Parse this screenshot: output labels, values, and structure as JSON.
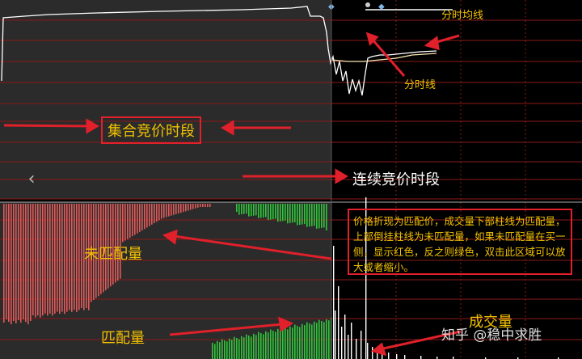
{
  "labels": {
    "call_auction": "集合竞价时段",
    "continuous_auction": "连续竞价时段",
    "unmatched_volume": "未匹配量",
    "matched_volume": "匹配量",
    "trade_volume": "成交量",
    "avg_price_line": "分时均线",
    "price_line": "分时线"
  },
  "note": "价格折现为匹配价，成交量下部柱线为匹配量，上部倒挂柱线为未匹配量，如果未匹配量在买一侧，显示红色，反之则绿色，双击此区域可以放大或者缩小。",
  "watermark": "知乎 @稳中求胜",
  "icons": {
    "back": "chevron-left-icon"
  },
  "colors": {
    "background": "#000000",
    "grid": "#8b1a1a",
    "red_bars": "#e05a5a",
    "green_bars": "#2fc63a",
    "annotation": "#e0202a",
    "label": "#f2c200"
  }
}
